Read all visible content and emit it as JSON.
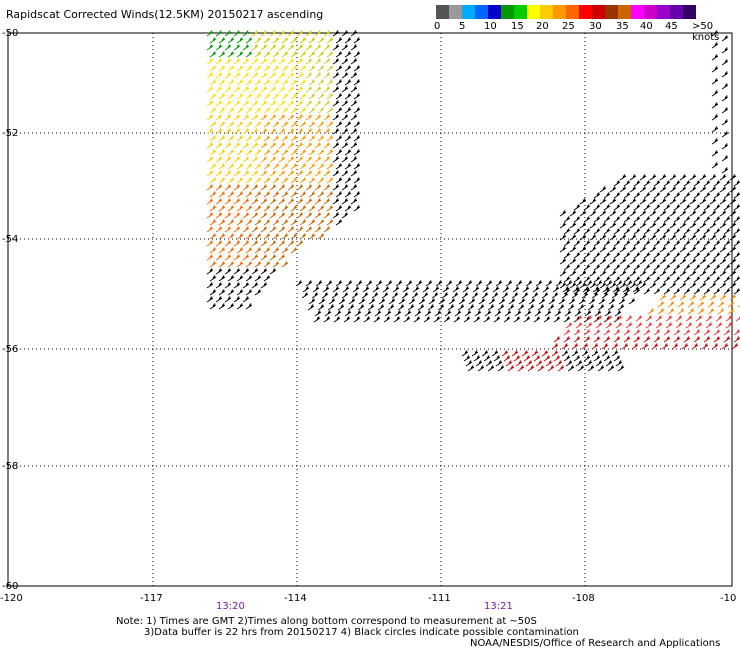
{
  "title": "Rapidscat Corrected Winds(12.5KM) 20150217 ascending",
  "legend": {
    "colors": [
      "#555555",
      "#999999",
      "#00aaff",
      "#0066ff",
      "#0000cc",
      "#009900",
      "#00cc00",
      "#ffff00",
      "#ffcc00",
      "#ff9900",
      "#ff6600",
      "#ff0000",
      "#cc0000",
      "#993300",
      "#cc6600",
      "#ff00ff",
      "#cc00cc",
      "#9900cc",
      "#6600aa",
      "#330066"
    ],
    "labels": [
      "0",
      "5",
      "10",
      "15",
      "20",
      "25",
      "30",
      "35",
      "40",
      "45",
      ">50 knots"
    ]
  },
  "y_ticks": [
    "-50",
    "-52",
    "-54",
    "-56",
    "-58",
    "-60"
  ],
  "x_ticks": [
    "-120",
    "-117",
    "-114",
    "-111",
    "-108",
    "-10"
  ],
  "times": [
    "13:20",
    "13:21"
  ],
  "notes": {
    "line1": "Note: 1) Times are GMT 2)Times along bottom correspond to measurement at ~50S",
    "line2": "3)Data buffer is 22 hrs from 20150217 4) Black circles indicate possible contamination",
    "line3": "NOAA/NESDIS/Office of Research and Applications"
  },
  "swaths": [
    {
      "name": "west-swath",
      "color_zone": "yellow-orange"
    },
    {
      "name": "south-swath",
      "color_zone": "black-orange-red"
    }
  ]
}
